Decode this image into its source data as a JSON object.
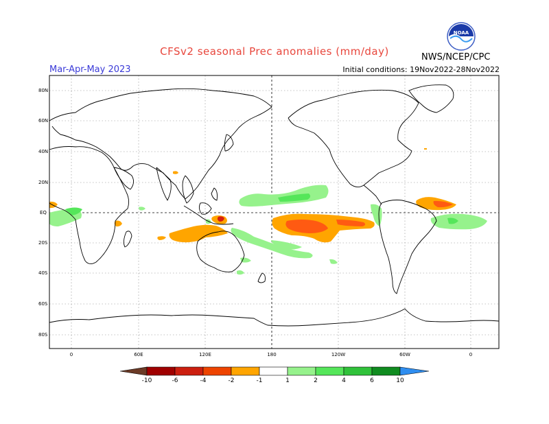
{
  "title": "CFSv2 seasonal Prec anomalies (mm/day)",
  "season": "Mar-Apr-May 2023",
  "initial_conditions": "Initial conditions: 19Nov2022-28Nov2022",
  "agency": "NWS/NCEP/CPC",
  "logo_text": "NOAA",
  "map": {
    "lat_labels": [
      "80N",
      "60N",
      "40N",
      "20N",
      "EQ",
      "20S",
      "40S",
      "60S",
      "80S"
    ],
    "lon_labels": [
      "0",
      "60E",
      "120E",
      "180",
      "120W",
      "60W",
      "0"
    ],
    "colors": {
      "land_outline": "#000000",
      "grid": "#777777"
    }
  },
  "colorbar": {
    "labels": [
      "-10",
      "-6",
      "-4",
      "-2",
      "-1",
      "1",
      "2",
      "4",
      "6",
      "10"
    ],
    "colors": [
      "#6b3a26",
      "#a00000",
      "#cc1f10",
      "#ee4400",
      "#ff8a00",
      "#ffa500",
      "#ffffff",
      "#96f28c",
      "#55e65a",
      "#30c23a",
      "#108c20",
      "#1fa82e",
      "#2f8ef0"
    ]
  },
  "anomaly_colors": {
    "dry_light": "#ffa500",
    "dry_mid": "#ff5a12",
    "dry_strong": "#d62012",
    "wet_light": "#96f28c",
    "wet_mid": "#55e65a"
  }
}
